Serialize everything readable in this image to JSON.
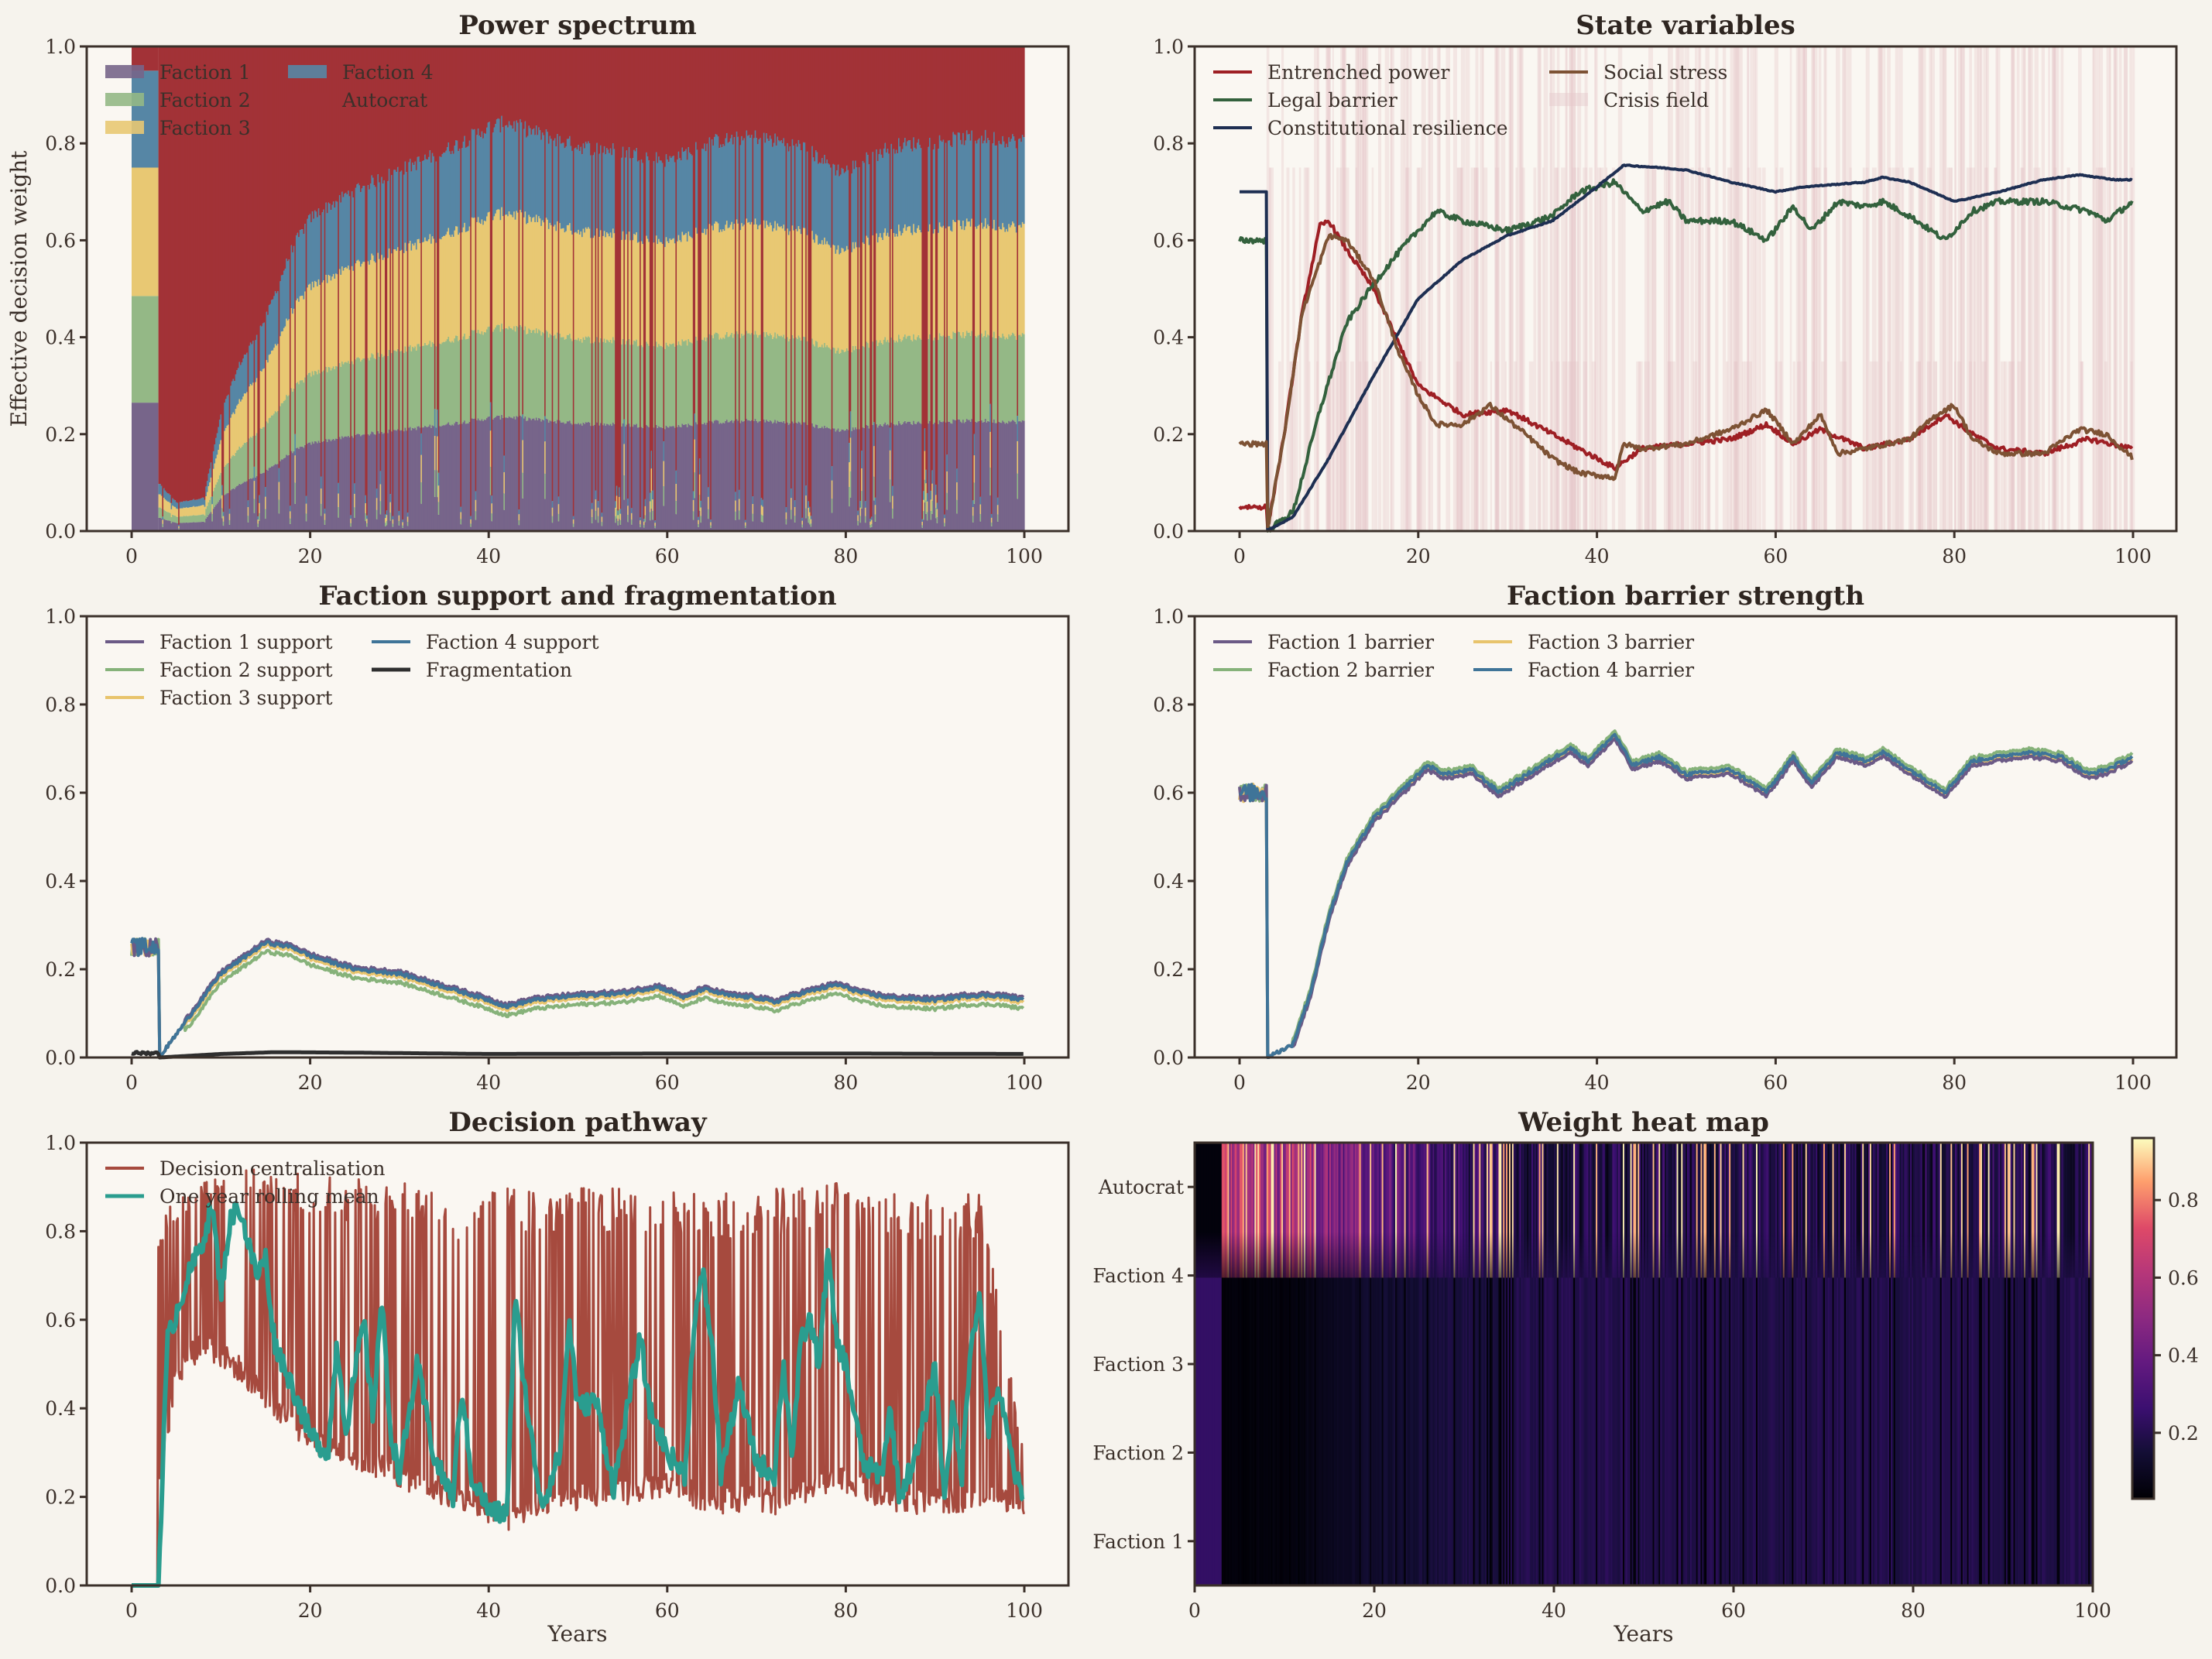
{
  "figure": {
    "background": "#f6f3ed",
    "axes_background": "#faf7f2",
    "x_label": "Years"
  },
  "chart_data": [
    {
      "id": "power",
      "type": "area",
      "title": "Power spectrum",
      "ylabel": "Effective decision weight",
      "xlabel": "",
      "xlim": [
        -5,
        105
      ],
      "ylim": [
        0,
        1
      ],
      "xticks": [
        0,
        20,
        40,
        60,
        80,
        100
      ],
      "yticks": [
        "0.0",
        "0.2",
        "0.4",
        "0.6",
        "0.8",
        "1.0"
      ],
      "legend": "top-left",
      "series": [
        {
          "name": "Faction 1",
          "color": "#77658a"
        },
        {
          "name": "Faction 2",
          "color": "#94b886"
        },
        {
          "name": "Faction 3",
          "color": "#e8c873"
        },
        {
          "name": "Faction 4",
          "color": "#5686a5"
        },
        {
          "name": "Autocrat",
          "color": "#a23237"
        }
      ],
      "initial_shares": {
        "x_range": [
          0,
          3
        ],
        "values": [
          0.265,
          0.22,
          0.265,
          0.2,
          0.05
        ]
      },
      "nonautocrat_envelope": {
        "x": [
          3,
          5,
          8,
          10,
          12,
          15,
          18,
          20,
          25,
          30,
          35,
          40,
          42,
          45,
          50,
          55,
          60,
          65,
          70,
          75,
          79,
          80,
          85,
          90,
          95,
          100
        ],
        "y": [
          0.1,
          0.06,
          0.07,
          0.25,
          0.35,
          0.45,
          0.6,
          0.66,
          0.72,
          0.76,
          0.8,
          0.85,
          0.86,
          0.84,
          0.81,
          0.8,
          0.78,
          0.82,
          0.83,
          0.81,
          0.76,
          0.76,
          0.81,
          0.82,
          0.83,
          0.82
        ]
      }
    },
    {
      "id": "state",
      "type": "line",
      "title": "State variables",
      "xlabel": "",
      "xlim": [
        -5,
        105
      ],
      "ylim": [
        0,
        1
      ],
      "xticks": [
        0,
        20,
        40,
        60,
        80,
        100
      ],
      "yticks": [
        "0.0",
        "0.2",
        "0.4",
        "0.6",
        "0.8",
        "1.0"
      ],
      "legend": "top-left",
      "series": [
        {
          "name": "Entrenched power",
          "color": "#9e1f24",
          "x": [
            0,
            3,
            3.1,
            5,
            7,
            9,
            10,
            12,
            15,
            18,
            20,
            25,
            30,
            35,
            40,
            42,
            45,
            50,
            55,
            59,
            62,
            65,
            70,
            75,
            79,
            82,
            85,
            90,
            95,
            100
          ],
          "y": [
            0.05,
            0.05,
            0.0,
            0.2,
            0.45,
            0.63,
            0.64,
            0.58,
            0.5,
            0.38,
            0.3,
            0.24,
            0.25,
            0.2,
            0.15,
            0.13,
            0.17,
            0.18,
            0.19,
            0.22,
            0.18,
            0.21,
            0.17,
            0.19,
            0.24,
            0.2,
            0.17,
            0.16,
            0.19,
            0.17
          ]
        },
        {
          "name": "Legal barrier",
          "color": "#33613d",
          "x": [
            0,
            3,
            3.1,
            6,
            9,
            12,
            15,
            18,
            20,
            22,
            25,
            30,
            35,
            38,
            42,
            45,
            48,
            50,
            55,
            59,
            62,
            64,
            67,
            70,
            72,
            75,
            79,
            82,
            85,
            90,
            95,
            97,
            100
          ],
          "y": [
            0.6,
            0.6,
            0.0,
            0.04,
            0.25,
            0.43,
            0.51,
            0.58,
            0.62,
            0.66,
            0.64,
            0.62,
            0.65,
            0.7,
            0.72,
            0.66,
            0.68,
            0.64,
            0.64,
            0.6,
            0.67,
            0.62,
            0.68,
            0.67,
            0.68,
            0.65,
            0.6,
            0.66,
            0.68,
            0.68,
            0.66,
            0.64,
            0.68
          ]
        },
        {
          "name": "Constitutional resilience",
          "color": "#1e2f52",
          "x": [
            0,
            3,
            3.1,
            6,
            10,
            15,
            20,
            25,
            30,
            35,
            40,
            43,
            47,
            50,
            55,
            60,
            63,
            70,
            72,
            75,
            80,
            85,
            90,
            94,
            98,
            100
          ],
          "y": [
            0.7,
            0.7,
            0.0,
            0.03,
            0.15,
            0.32,
            0.48,
            0.56,
            0.61,
            0.64,
            0.71,
            0.755,
            0.75,
            0.745,
            0.72,
            0.7,
            0.71,
            0.72,
            0.73,
            0.72,
            0.68,
            0.7,
            0.725,
            0.735,
            0.725,
            0.725
          ]
        },
        {
          "name": "Social stress",
          "color": "#7d5234",
          "x": [
            0,
            3,
            3.1,
            5,
            7,
            10,
            12,
            15,
            18,
            20,
            22,
            25,
            28,
            32,
            35,
            38,
            42,
            43,
            45,
            50,
            55,
            59,
            62,
            65,
            67,
            70,
            75,
            78,
            80,
            82,
            85,
            90,
            94,
            97,
            100
          ],
          "y": [
            0.18,
            0.18,
            0.0,
            0.2,
            0.45,
            0.61,
            0.6,
            0.52,
            0.36,
            0.28,
            0.22,
            0.22,
            0.26,
            0.2,
            0.15,
            0.12,
            0.11,
            0.18,
            0.17,
            0.18,
            0.21,
            0.25,
            0.18,
            0.24,
            0.16,
            0.17,
            0.19,
            0.24,
            0.26,
            0.19,
            0.16,
            0.16,
            0.21,
            0.2,
            0.15
          ]
        },
        {
          "name": "Crisis field",
          "color": "#e4c7c9",
          "style": "band"
        }
      ]
    },
    {
      "id": "support",
      "type": "line",
      "title": "Faction support and fragmentation",
      "xlabel": "",
      "xlim": [
        -5,
        105
      ],
      "ylim": [
        0,
        1
      ],
      "xticks": [
        0,
        20,
        40,
        60,
        80,
        100
      ],
      "yticks": [
        "0.0",
        "0.2",
        "0.4",
        "0.6",
        "0.8",
        "1.0"
      ],
      "legend": "top-left",
      "base_curve": {
        "x": [
          0,
          3,
          3.1,
          6,
          10,
          15,
          18,
          20,
          25,
          30,
          35,
          40,
          42,
          45,
          50,
          55,
          59,
          62,
          64,
          67,
          70,
          72,
          75,
          79,
          82,
          85,
          90,
          94,
          97,
          100
        ],
        "y": [
          0.25,
          0.25,
          0.0,
          0.08,
          0.19,
          0.26,
          0.25,
          0.23,
          0.2,
          0.19,
          0.16,
          0.13,
          0.115,
          0.13,
          0.14,
          0.145,
          0.16,
          0.135,
          0.155,
          0.14,
          0.135,
          0.125,
          0.145,
          0.165,
          0.145,
          0.135,
          0.13,
          0.14,
          0.14,
          0.13
        ]
      },
      "series": [
        {
          "name": "Faction 1 support",
          "color": "#6b5a86",
          "offset": 0.005
        },
        {
          "name": "Faction 2 support",
          "color": "#86b27a",
          "offset": -0.02
        },
        {
          "name": "Faction 3 support",
          "color": "#e8c46c",
          "offset": -0.006
        },
        {
          "name": "Faction 4 support",
          "color": "#3f7498",
          "offset": 0.0
        },
        {
          "name": "Fragmentation",
          "color": "#2f2f2f",
          "x": [
            0,
            3,
            3.1,
            10,
            16,
            25,
            40,
            60,
            80,
            100
          ],
          "y": [
            0.01,
            0.01,
            0.0,
            0.008,
            0.012,
            0.011,
            0.008,
            0.009,
            0.009,
            0.008
          ]
        }
      ]
    },
    {
      "id": "barrier",
      "type": "line",
      "title": "Faction barrier strength",
      "xlabel": "",
      "xlim": [
        -5,
        105
      ],
      "ylim": [
        0,
        1
      ],
      "xticks": [
        0,
        20,
        40,
        60,
        80,
        100
      ],
      "yticks": [
        "0.0",
        "0.2",
        "0.4",
        "0.6",
        "0.8",
        "1.0"
      ],
      "legend": "top-left",
      "base_curve": {
        "x": [
          0,
          3,
          3.1,
          6,
          8,
          10,
          12,
          15,
          18,
          21,
          23,
          26,
          29,
          33,
          37,
          39,
          42,
          44,
          47,
          50,
          55,
          59,
          62,
          64,
          67,
          70,
          72,
          75,
          79,
          82,
          85,
          88,
          92,
          95,
          97,
          100
        ],
        "y": [
          0.6,
          0.6,
          0.0,
          0.03,
          0.15,
          0.32,
          0.44,
          0.54,
          0.6,
          0.66,
          0.64,
          0.65,
          0.6,
          0.65,
          0.7,
          0.67,
          0.73,
          0.66,
          0.68,
          0.64,
          0.65,
          0.6,
          0.68,
          0.62,
          0.69,
          0.67,
          0.69,
          0.65,
          0.6,
          0.67,
          0.68,
          0.69,
          0.68,
          0.64,
          0.65,
          0.68
        ]
      },
      "series": [
        {
          "name": "Faction 1 barrier",
          "color": "#6b5a86",
          "offset": -0.008
        },
        {
          "name": "Faction 2 barrier",
          "color": "#86b27a",
          "offset": 0.01
        },
        {
          "name": "Faction 3 barrier",
          "color": "#e8c46c",
          "offset": -0.004
        },
        {
          "name": "Faction 4 barrier",
          "color": "#3f7498",
          "offset": 0.002
        }
      ]
    },
    {
      "id": "pathway",
      "type": "line",
      "title": "Decision pathway",
      "xlabel": "Years",
      "xlim": [
        -5,
        105
      ],
      "ylim": [
        0,
        1
      ],
      "xticks": [
        0,
        20,
        40,
        60,
        80,
        100
      ],
      "yticks": [
        "0.0",
        "0.2",
        "0.4",
        "0.6",
        "0.8",
        "1.0"
      ],
      "legend": "top-left",
      "series": [
        {
          "name": "Decision centralisation",
          "color": "#a64a3e",
          "floor": {
            "x": [
              0,
              3,
              3.1,
              5,
              8,
              12,
              20,
              30,
              40,
              42,
              46,
              50,
              55,
              60,
              65,
              70,
              72,
              78,
              80,
              85,
              90,
              95,
              100
            ],
            "y": [
              0,
              0,
              0.2,
              0.45,
              0.52,
              0.46,
              0.3,
              0.22,
              0.14,
              0.12,
              0.15,
              0.17,
              0.18,
              0.2,
              0.16,
              0.17,
              0.15,
              0.2,
              0.21,
              0.16,
              0.16,
              0.17,
              0.16
            ]
          },
          "peak": {
            "x": [
              3,
              10,
              20,
              30,
              38,
              42,
              50,
              60,
              70,
              78,
              80,
              90,
              95,
              100
            ],
            "y": [
              0.85,
              0.95,
              0.93,
              0.91,
              0.88,
              0.9,
              0.9,
              0.9,
              0.89,
              0.91,
              0.91,
              0.88,
              0.89,
              0.3
            ]
          }
        },
        {
          "name": "One year rolling mean",
          "color": "#2a9d8f",
          "x": [
            0,
            3,
            4,
            6,
            8,
            9,
            10,
            11,
            12,
            14,
            15,
            16,
            18,
            20,
            22,
            23,
            24,
            26,
            27,
            28,
            29,
            30,
            32,
            34,
            36,
            37,
            38,
            40,
            42,
            43,
            44,
            45,
            46,
            48,
            49,
            50,
            52,
            54,
            56,
            57,
            58,
            60,
            62,
            63,
            64,
            65,
            66,
            68,
            70,
            72,
            73,
            74,
            75,
            76,
            77,
            78,
            79,
            80,
            82,
            84,
            85,
            86,
            88,
            90,
            91,
            92,
            93,
            94,
            95,
            96,
            97,
            98,
            99,
            100
          ],
          "y": [
            0,
            0,
            0.55,
            0.68,
            0.78,
            0.86,
            0.66,
            0.82,
            0.86,
            0.7,
            0.74,
            0.55,
            0.45,
            0.34,
            0.3,
            0.55,
            0.35,
            0.6,
            0.38,
            0.65,
            0.35,
            0.25,
            0.5,
            0.28,
            0.2,
            0.45,
            0.25,
            0.17,
            0.16,
            0.65,
            0.45,
            0.3,
            0.18,
            0.3,
            0.6,
            0.4,
            0.42,
            0.22,
            0.45,
            0.56,
            0.4,
            0.3,
            0.25,
            0.6,
            0.7,
            0.55,
            0.25,
            0.45,
            0.28,
            0.25,
            0.5,
            0.3,
            0.55,
            0.6,
            0.5,
            0.75,
            0.55,
            0.5,
            0.27,
            0.25,
            0.4,
            0.2,
            0.3,
            0.5,
            0.2,
            0.4,
            0.25,
            0.55,
            0.65,
            0.35,
            0.45,
            0.35,
            0.25,
            0.18
          ]
        }
      ]
    },
    {
      "id": "heatmap",
      "type": "heatmap",
      "title": "Weight heat map",
      "xlabel": "Years",
      "xlim": [
        0,
        100
      ],
      "xticks": [
        0,
        20,
        40,
        60,
        80,
        100
      ],
      "rows": [
        "Faction 1",
        "Faction 2",
        "Faction 3",
        "Faction 4",
        "Autocrat"
      ],
      "colormap": "magma",
      "colorbar": {
        "range": [
          0.03,
          0.96
        ],
        "ticks": [
          "0.2",
          "0.4",
          "0.6",
          "0.8"
        ]
      }
    }
  ]
}
